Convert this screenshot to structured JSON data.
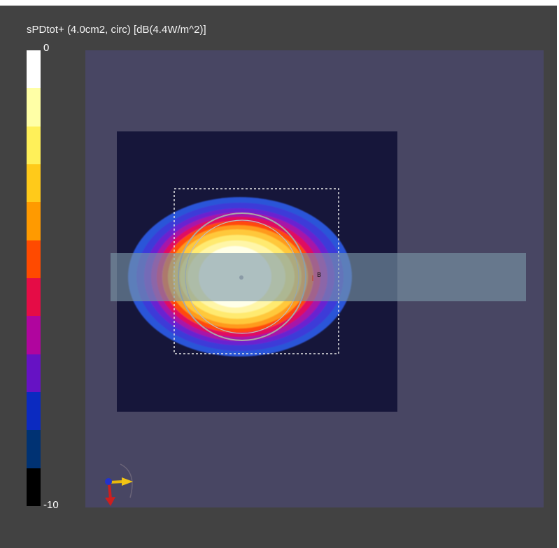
{
  "title": "sPDtot+ (4.0cm2, circ) [dB(4.4W/m^2)]",
  "colorbar": {
    "max_label": "0",
    "min_label": "-10",
    "colors": [
      "#ffffff",
      "#ffffa6",
      "#fff059",
      "#ffca1a",
      "#ff9a00",
      "#ff4a00",
      "#e50c46",
      "#b0059e",
      "#6612c4",
      "#0b2ac0",
      "#003273",
      "#000000"
    ]
  },
  "scene": {
    "outer_color": "#484663",
    "inner_color": "#16163a",
    "strip_color": "#7a98a8",
    "marker_label": "B"
  }
}
